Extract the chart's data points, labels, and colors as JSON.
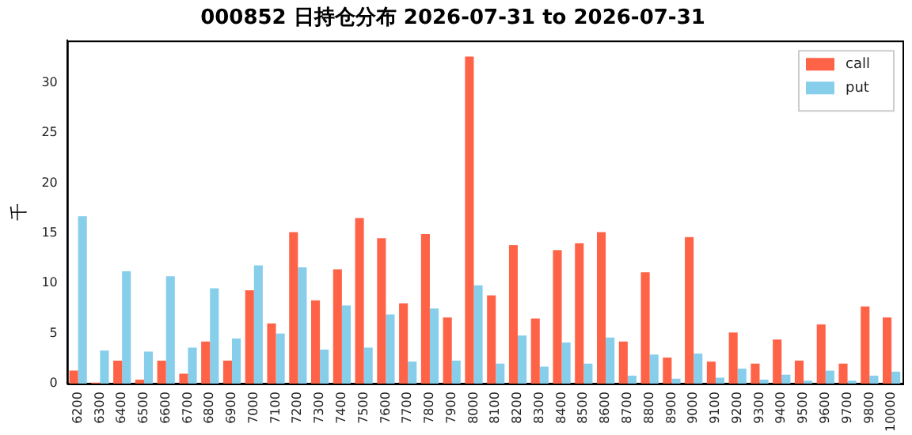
{
  "chart_data": {
    "type": "bar",
    "title": "000852 日持仓分布 2026-07-31 to 2026-07-31",
    "ylabel": "千",
    "categories": [
      "6200",
      "6300",
      "6400",
      "6500",
      "6600",
      "6700",
      "6800",
      "6900",
      "7000",
      "7100",
      "7200",
      "7300",
      "7400",
      "7500",
      "7600",
      "7700",
      "7800",
      "7900",
      "8000",
      "8100",
      "8200",
      "8300",
      "8400",
      "8500",
      "8600",
      "8700",
      "8800",
      "8900",
      "9000",
      "9100",
      "9200",
      "9300",
      "9400",
      "9500",
      "9600",
      "9700",
      "9800",
      "10000"
    ],
    "series": [
      {
        "name": "call",
        "color": "#ff6347",
        "values": [
          1.3,
          0.1,
          2.3,
          0.4,
          2.3,
          1.0,
          4.2,
          2.3,
          9.3,
          6.0,
          15.1,
          8.3,
          11.4,
          16.5,
          14.5,
          8.0,
          14.9,
          6.6,
          32.6,
          8.8,
          13.8,
          6.5,
          13.3,
          14.0,
          15.1,
          4.2,
          11.1,
          2.6,
          14.6,
          2.2,
          5.1,
          2.0,
          4.4,
          2.3,
          5.9,
          2.0,
          7.7,
          6.6
        ]
      },
      {
        "name": "put",
        "color": "#87ceeb",
        "values": [
          16.7,
          3.3,
          11.2,
          3.2,
          10.7,
          3.6,
          9.5,
          4.5,
          11.8,
          5.0,
          11.6,
          3.4,
          7.8,
          3.6,
          6.9,
          2.2,
          7.5,
          2.3,
          9.8,
          2.0,
          4.8,
          1.7,
          4.1,
          2.0,
          4.6,
          0.8,
          2.9,
          0.5,
          3.0,
          0.6,
          1.5,
          0.4,
          0.9,
          0.3,
          1.3,
          0.3,
          0.8,
          1.2
        ]
      }
    ],
    "ylim": [
      0,
      34.2
    ],
    "yticks": [
      0,
      5,
      10,
      15,
      20,
      25,
      30
    ],
    "grid": false,
    "legend": "top right"
  }
}
